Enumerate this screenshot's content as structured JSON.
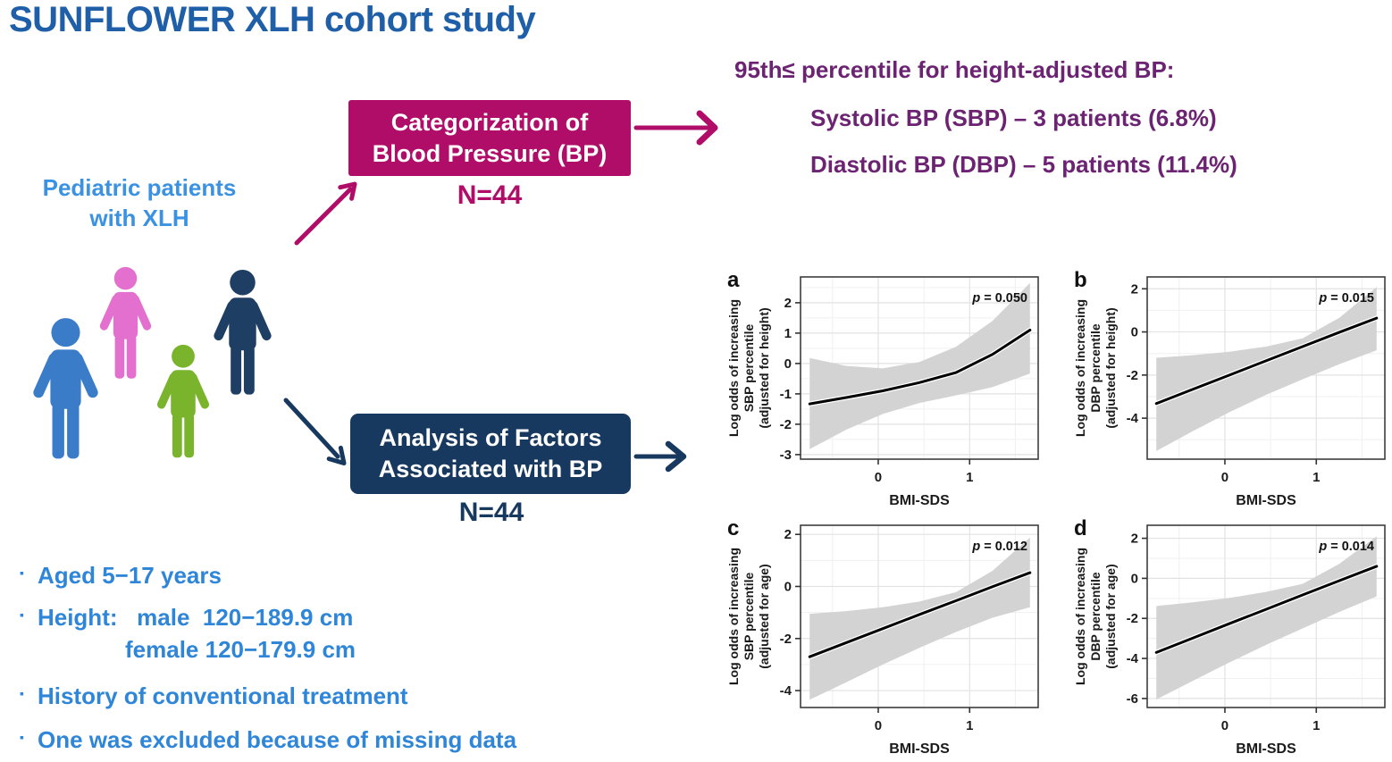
{
  "title": "SUNFLOWER XLH cohort study",
  "colors": {
    "title_blue": "#1f5fa8",
    "accent_blue": "#2f86d8",
    "pediatric_blue": "#3b92e2",
    "magenta": "#b00d69",
    "purple": "#6b2372",
    "navy": "#17395f"
  },
  "cohort": {
    "line1": "Pediatric patients",
    "line2": "with XLH"
  },
  "figures": [
    {
      "name": "child-blue",
      "color": "#3b7cc9"
    },
    {
      "name": "child-pink",
      "color": "#e36fce"
    },
    {
      "name": "child-green",
      "color": "#79b42c"
    },
    {
      "name": "child-navy",
      "color": "#1f3e63"
    }
  ],
  "flow": {
    "categorization": {
      "line1": "Categorization of",
      "line2": "Blood Pressure (BP)",
      "n": "N=44"
    },
    "analysis": {
      "line1": "Analysis of Factors",
      "line2": "Associated with BP",
      "n": "N=44"
    }
  },
  "results": {
    "heading": "95th≤ percentile for height-adjusted BP:",
    "sbp_line": "Systolic BP (SBP) – 3 patients (6.8%)",
    "dbp_line": "Diastolic BP (DBP) – 5 patients (11.4%)"
  },
  "criteria": {
    "bullet": "▪",
    "items": [
      {
        "line1": "Aged 5−17 years"
      },
      {
        "line1": "Height:   male  120−189.9 cm",
        "line2": "female 120−179.9 cm"
      },
      {
        "line1": "History of conventional treatment"
      },
      {
        "line1": "One was excluded because of missing data"
      }
    ]
  },
  "chart_data": [
    {
      "panel": "a",
      "type": "line",
      "ylabel_lines": [
        "Log odds of increasing",
        "SBP percentile",
        "(adjusted for height)"
      ],
      "xlabel": "BMI-SDS",
      "p_label": "p = 0.050",
      "xlim": [
        -0.85,
        1.75
      ],
      "ylim": [
        -3.15,
        2.85
      ],
      "xticks": [
        0,
        1
      ],
      "yticks": [
        -3,
        -2,
        -1,
        0,
        1,
        2
      ],
      "grid": true,
      "band_color": "#d3d3d3",
      "x": [
        -0.75,
        -0.35,
        0.05,
        0.45,
        0.85,
        1.25,
        1.66
      ],
      "fit": [
        -1.33,
        -1.12,
        -0.9,
        -0.63,
        -0.3,
        0.3,
        1.1
      ],
      "ci_upper": [
        0.18,
        -0.08,
        -0.16,
        0.05,
        0.55,
        1.4,
        2.65
      ],
      "ci_lower": [
        -2.82,
        -2.18,
        -1.66,
        -1.3,
        -1.05,
        -0.78,
        -0.33
      ]
    },
    {
      "panel": "b",
      "type": "line",
      "ylabel_lines": [
        "Log odds of increasing",
        "DBP percentile",
        "(adjusted for height)"
      ],
      "xlabel": "BMI-SDS",
      "p_label": "p = 0.015",
      "xlim": [
        -0.85,
        1.75
      ],
      "ylim": [
        -5.9,
        2.55
      ],
      "xticks": [
        0,
        1
      ],
      "yticks": [
        -4,
        -2,
        0,
        2
      ],
      "grid": true,
      "band_color": "#d3d3d3",
      "x": [
        -0.75,
        -0.35,
        0.05,
        0.45,
        0.85,
        1.25,
        1.66
      ],
      "fit": [
        -3.32,
        -2.66,
        -2.0,
        -1.34,
        -0.68,
        -0.02,
        0.64
      ],
      "ci_upper": [
        -1.2,
        -1.08,
        -0.92,
        -0.68,
        -0.3,
        0.65,
        2.08
      ],
      "ci_lower": [
        -5.52,
        -4.6,
        -3.72,
        -2.92,
        -2.2,
        -1.5,
        -0.85
      ]
    },
    {
      "panel": "c",
      "type": "line",
      "ylabel_lines": [
        "Log odds of increasing",
        "SBP percentile",
        "(adjusted for age)"
      ],
      "xlabel": "BMI-SDS",
      "p_label": "p = 0.012",
      "xlim": [
        -0.85,
        1.75
      ],
      "ylim": [
        -4.65,
        2.35
      ],
      "xticks": [
        0,
        1
      ],
      "yticks": [
        -4,
        -2,
        0,
        2
      ],
      "grid": true,
      "band_color": "#d3d3d3",
      "x": [
        -0.75,
        -0.35,
        0.05,
        0.45,
        0.85,
        1.25,
        1.66
      ],
      "fit": [
        -2.7,
        -2.16,
        -1.62,
        -1.08,
        -0.55,
        -0.01,
        0.53
      ],
      "ci_upper": [
        -1.05,
        -0.95,
        -0.8,
        -0.58,
        -0.22,
        0.6,
        1.88
      ],
      "ci_lower": [
        -4.35,
        -3.68,
        -3.0,
        -2.36,
        -1.75,
        -1.2,
        -0.8
      ]
    },
    {
      "panel": "d",
      "type": "line",
      "ylabel_lines": [
        "Log odds of increasing",
        "DBP percentile",
        "(adjusted for age)"
      ],
      "xlabel": "BMI-SDS",
      "p_label": "p = 0.014",
      "xlim": [
        -0.85,
        1.75
      ],
      "ylim": [
        -6.45,
        2.65
      ],
      "xticks": [
        0,
        1
      ],
      "yticks": [
        -6,
        -4,
        -2,
        0,
        2
      ],
      "grid": true,
      "band_color": "#d3d3d3",
      "x": [
        -0.75,
        -0.35,
        0.05,
        0.45,
        0.85,
        1.25,
        1.66
      ],
      "fit": [
        -3.7,
        -2.98,
        -2.26,
        -1.55,
        -0.83,
        -0.12,
        0.6
      ],
      "ci_upper": [
        -1.38,
        -1.2,
        -0.98,
        -0.68,
        -0.28,
        0.72,
        2.1
      ],
      "ci_lower": [
        -6.05,
        -5.12,
        -4.2,
        -3.32,
        -2.5,
        -1.68,
        -0.9
      ]
    }
  ]
}
